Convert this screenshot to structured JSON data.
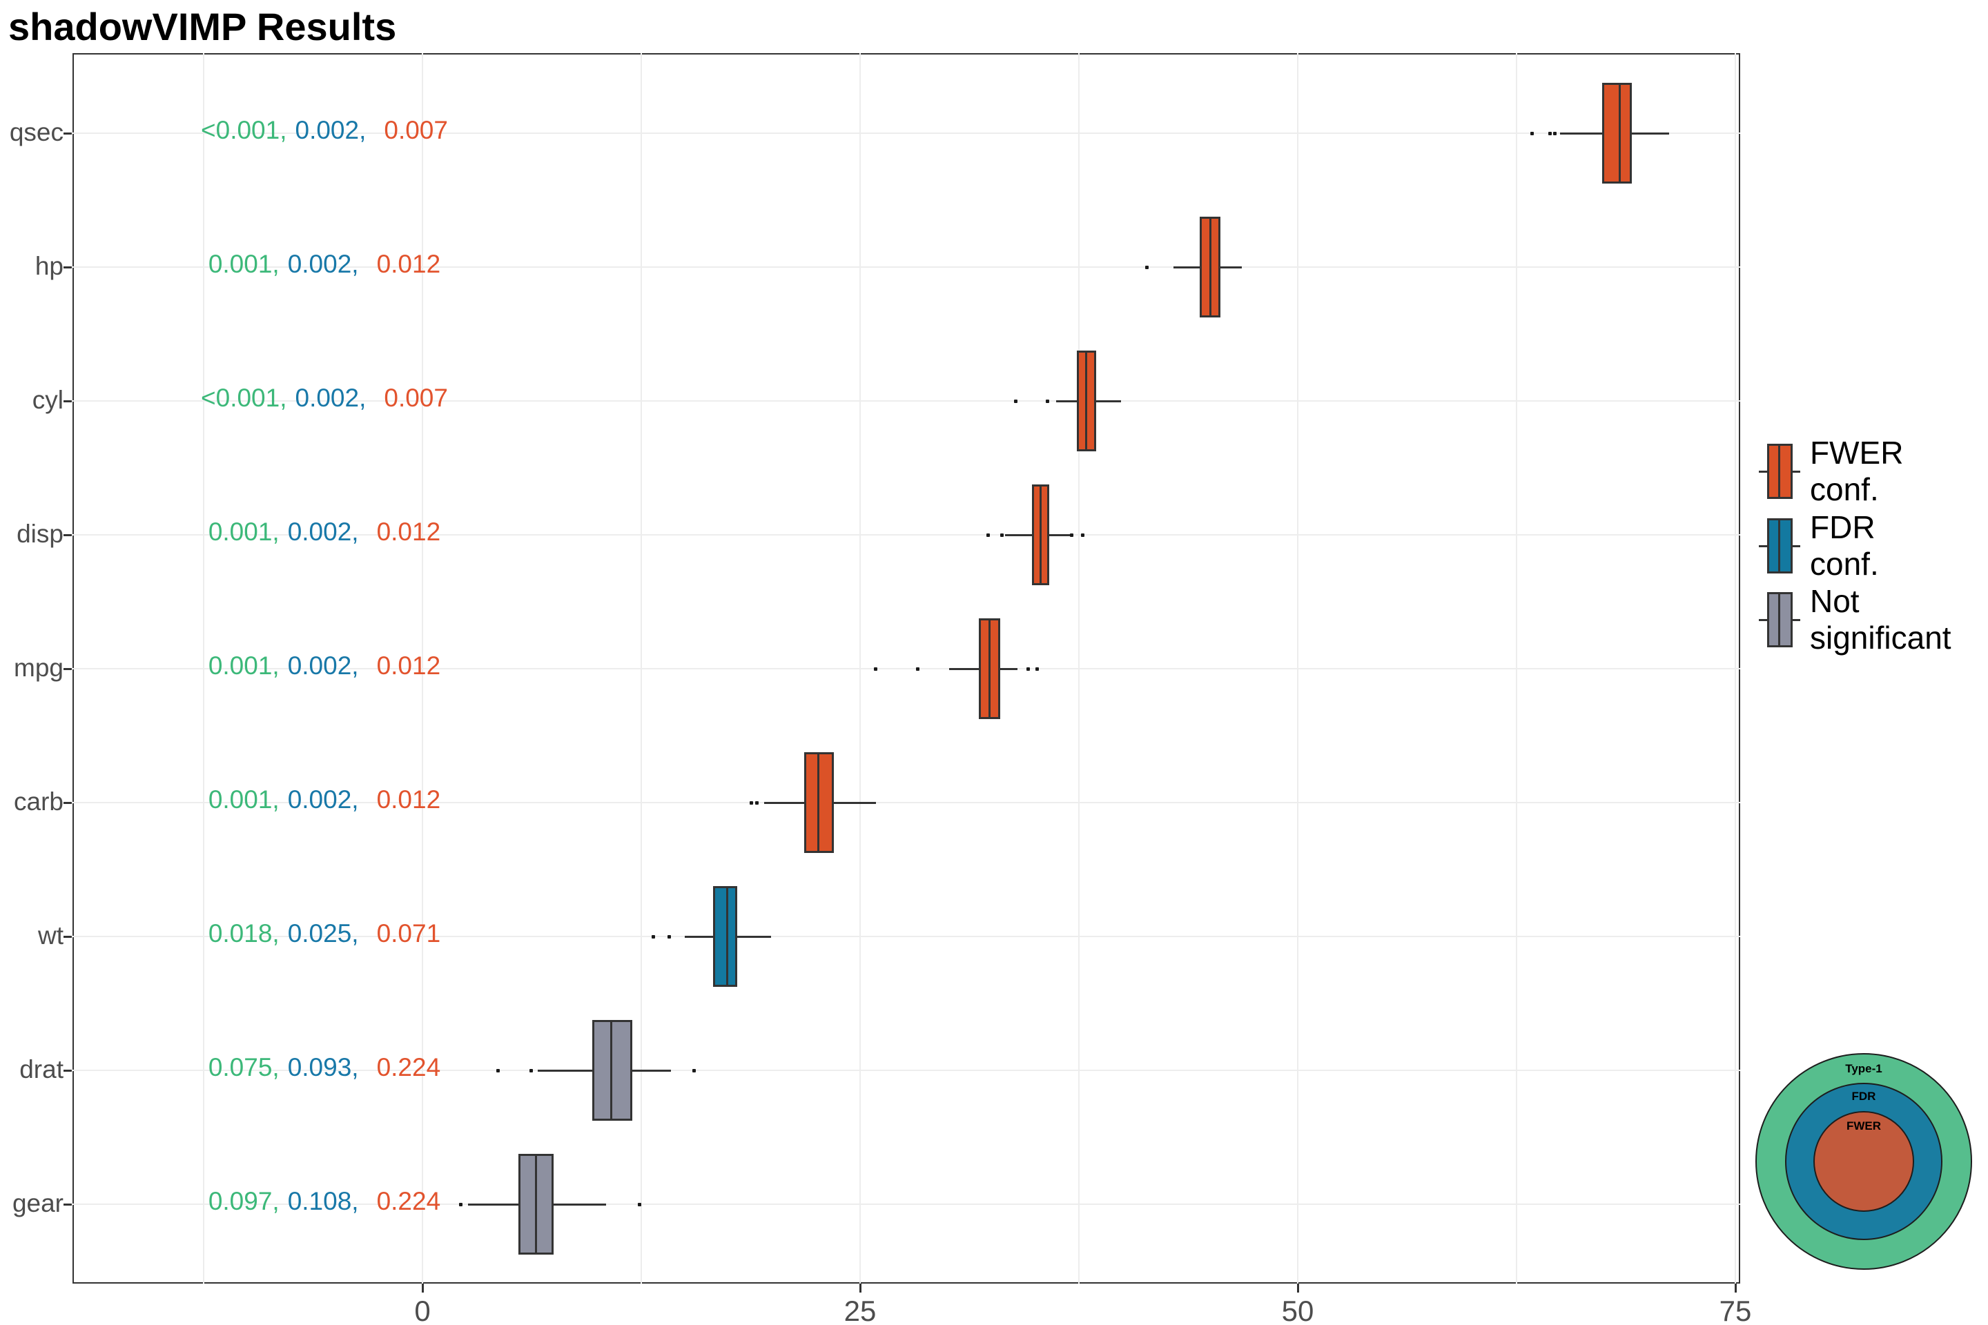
{
  "title": "shadowVIMP Results",
  "colors": {
    "fwer": "#DB5227",
    "fdr": "#1379A0",
    "not_significant": "#8D90A0",
    "box_border": "#333333",
    "pvalue_green": "#3CB879",
    "pvalue_blue": "#1878A8",
    "pvalue_red": "#E2532D",
    "grid": "#ededed",
    "axis_text": "#4d4d4d",
    "venn_green": "#56BE8D",
    "venn_blue": "#1A7DA1",
    "venn_orange": "#C25A3C"
  },
  "legend": {
    "items": [
      {
        "id": "fwer",
        "lines": [
          "FWER",
          "conf."
        ]
      },
      {
        "id": "fdr",
        "lines": [
          "FDR",
          "conf."
        ]
      },
      {
        "id": "not_significant",
        "lines": [
          "Not",
          "significant"
        ]
      }
    ]
  },
  "venn": {
    "rings": [
      {
        "label": "Type-1",
        "color_key": "venn_green"
      },
      {
        "label": "FDR",
        "color_key": "venn_blue"
      },
      {
        "label": "FWER",
        "color_key": "venn_orange"
      }
    ]
  },
  "chart_data": {
    "type": "boxplot-horizontal",
    "title": "shadowVIMP Results",
    "xlabel": "",
    "ylabel": "",
    "xlim": [
      -20,
      75.3
    ],
    "x_ticks": [
      0,
      25,
      50,
      75
    ],
    "x_minor_gridlines": [
      -12.5,
      12.5,
      37.5,
      62.5
    ],
    "grid": true,
    "legend_position": "right",
    "rows": [
      {
        "label": "qsec",
        "group": "fwer",
        "pvalues": [
          "<0.001",
          "0.002",
          "0.007"
        ],
        "whisker_lo": 65.0,
        "q1": 67.4,
        "median": 68.4,
        "q3": 69.1,
        "whisker_hi": 71.2,
        "outliers": [
          63.4,
          64.4,
          64.7
        ]
      },
      {
        "label": "hp",
        "group": "fwer",
        "pvalues": [
          "0.001",
          "0.002",
          "0.012"
        ],
        "whisker_lo": 42.9,
        "q1": 44.4,
        "median": 45.0,
        "q3": 45.6,
        "whisker_hi": 46.8,
        "outliers": [
          41.4
        ]
      },
      {
        "label": "cyl",
        "group": "fwer",
        "pvalues": [
          "<0.001",
          "0.002",
          "0.007"
        ],
        "whisker_lo": 36.2,
        "q1": 37.4,
        "median": 37.9,
        "q3": 38.5,
        "whisker_hi": 39.9,
        "outliers": [
          33.9,
          35.7
        ]
      },
      {
        "label": "disp",
        "group": "fwer",
        "pvalues": [
          "0.001",
          "0.002",
          "0.012"
        ],
        "whisker_lo": 33.3,
        "q1": 34.8,
        "median": 35.3,
        "q3": 35.8,
        "whisker_hi": 37.0,
        "outliers": [
          32.3,
          33.1,
          37.1,
          37.7
        ]
      },
      {
        "label": "mpg",
        "group": "fwer",
        "pvalues": [
          "0.001",
          "0.002",
          "0.012"
        ],
        "whisker_lo": 30.1,
        "q1": 31.8,
        "median": 32.4,
        "q3": 33.0,
        "whisker_hi": 34.0,
        "outliers": [
          25.9,
          28.3,
          34.6,
          35.1
        ]
      },
      {
        "label": "carb",
        "group": "fwer",
        "pvalues": [
          "0.001",
          "0.002",
          "0.012"
        ],
        "whisker_lo": 19.5,
        "q1": 21.8,
        "median": 22.6,
        "q3": 23.5,
        "whisker_hi": 25.9,
        "outliers": [
          18.8,
          19.1
        ]
      },
      {
        "label": "wt",
        "group": "fdr",
        "pvalues": [
          "0.018",
          "0.025",
          "0.071"
        ],
        "whisker_lo": 15.0,
        "q1": 16.6,
        "median": 17.4,
        "q3": 18.0,
        "whisker_hi": 19.9,
        "outliers": [
          13.2,
          14.1
        ]
      },
      {
        "label": "drat",
        "group": "not_significant",
        "pvalues": [
          "0.075",
          "0.093",
          "0.224"
        ],
        "whisker_lo": 6.6,
        "q1": 9.7,
        "median": 10.8,
        "q3": 12.0,
        "whisker_hi": 14.2,
        "outliers": [
          4.3,
          6.2,
          15.5
        ]
      },
      {
        "label": "gear",
        "group": "not_significant",
        "pvalues": [
          "0.097",
          "0.108",
          "0.224"
        ],
        "whisker_lo": 2.6,
        "q1": 5.5,
        "median": 6.5,
        "q3": 7.5,
        "whisker_hi": 10.5,
        "outliers": [
          2.2,
          12.4
        ]
      }
    ]
  }
}
